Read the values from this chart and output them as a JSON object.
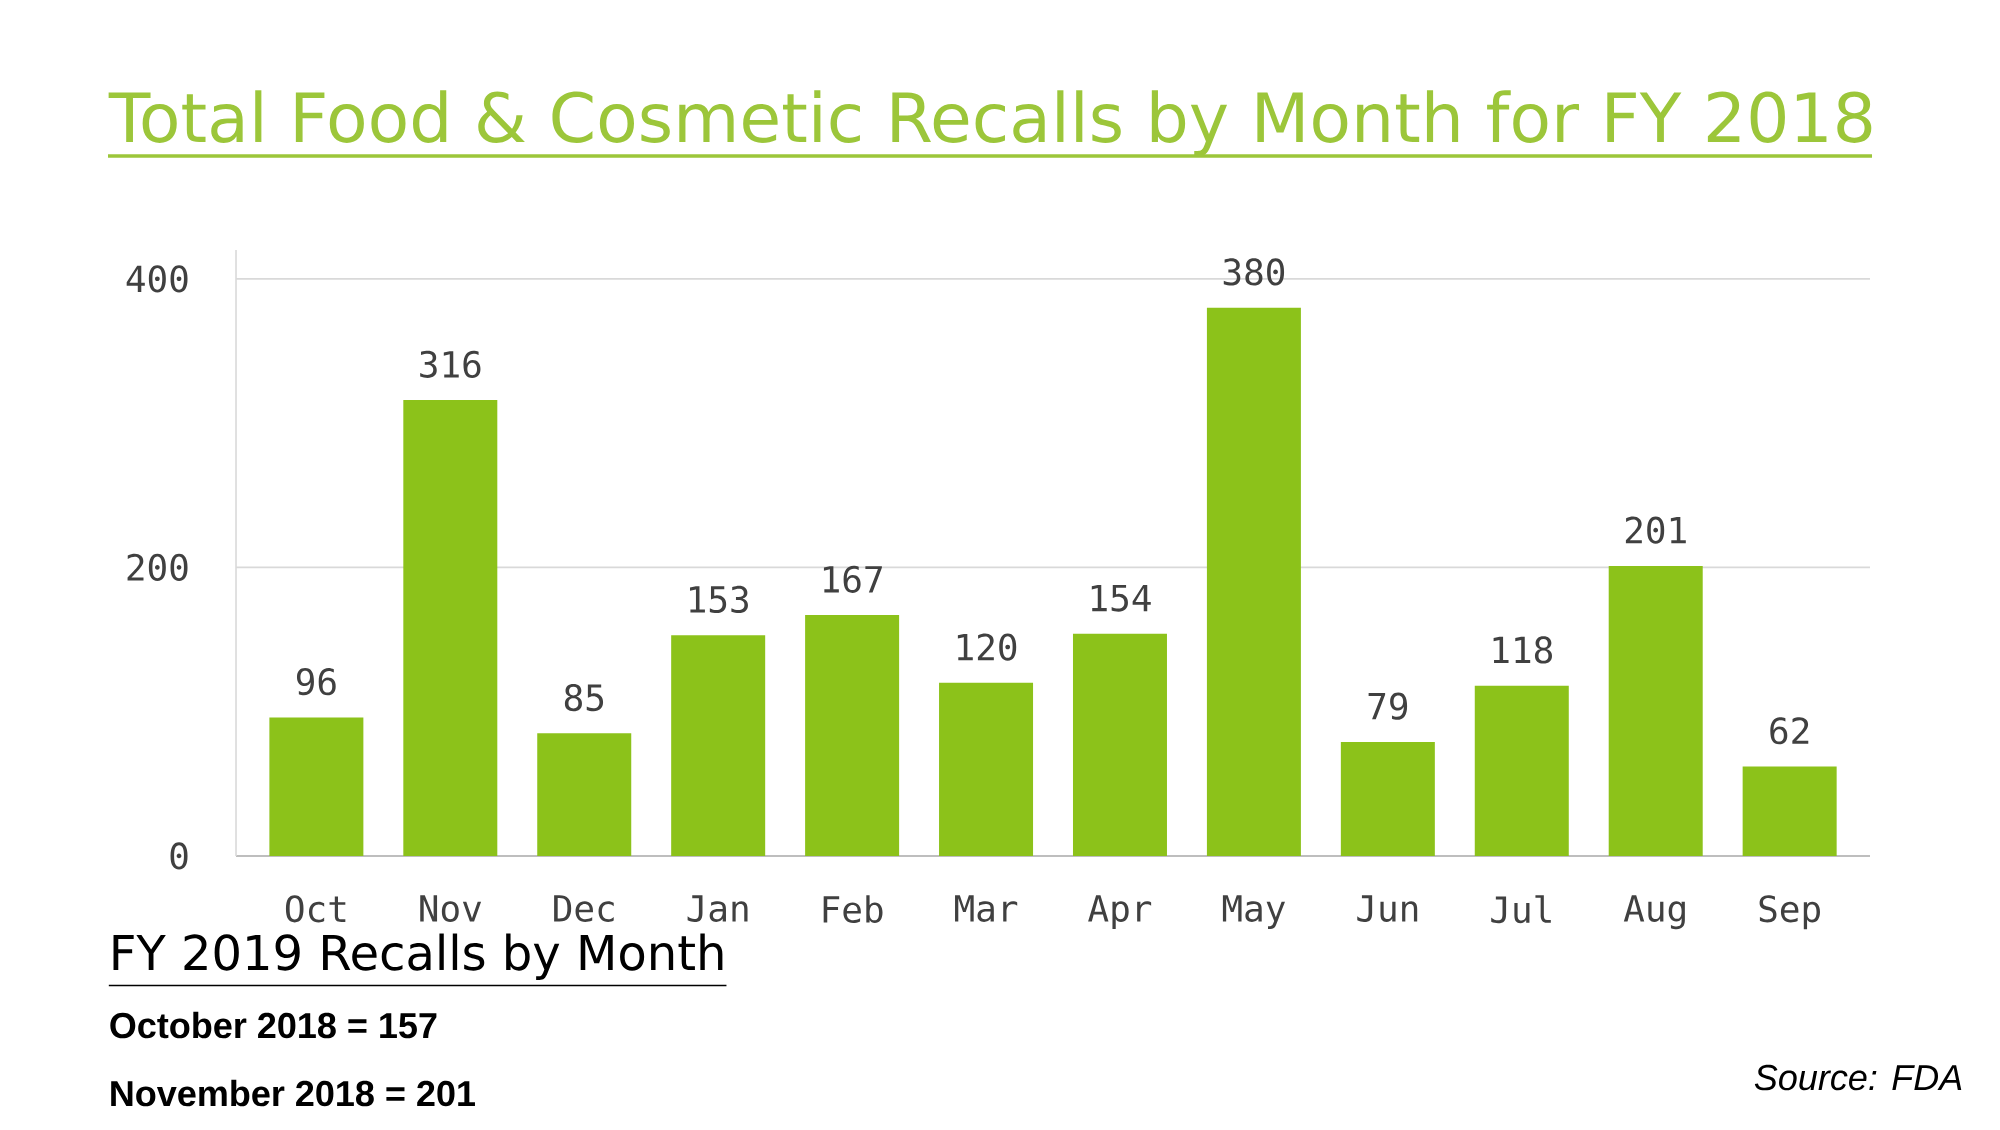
{
  "chart_data": {
    "type": "bar",
    "title": "Total Food & Cosmetic Recalls by Month for FY 2018",
    "categories": [
      "Oct",
      "Nov",
      "Dec",
      "Jan",
      "Feb",
      "Mar",
      "Apr",
      "May",
      "Jun",
      "Jul",
      "Aug",
      "Sep"
    ],
    "values": [
      96,
      316,
      85,
      153,
      167,
      120,
      154,
      380,
      79,
      118,
      201,
      62
    ],
    "color": "#8cc21a",
    "ylim": [
      0,
      420
    ],
    "yticks": [
      0,
      200,
      400
    ],
    "grid": "y",
    "data_labels": true,
    "annotations": [
      "FY 2019 Recalls by Month",
      "October 2018 = 157",
      "November 2018 = 201",
      "Source: FDA"
    ]
  }
}
